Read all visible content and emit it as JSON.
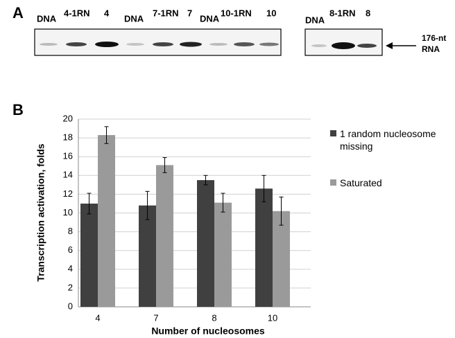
{
  "panel_a": {
    "label": "A",
    "gel_1_lanes": [
      "DNA",
      "4-1RN",
      "4",
      "DNA",
      "7-1RN",
      "7",
      "DNA",
      "10-1RN",
      "10"
    ],
    "gel_2_lanes": [
      "DNA",
      "8-1RN",
      "8"
    ],
    "band_label": [
      "176-nt",
      "RNA"
    ]
  },
  "chart_data": {
    "type": "bar",
    "panel_label": "B",
    "categories": [
      "4",
      "7",
      "8",
      "10"
    ],
    "series": [
      {
        "name": "1 random nucleosome missing",
        "color": "#404040",
        "values": [
          11.0,
          10.8,
          13.5,
          12.6
        ],
        "errors": [
          1.1,
          1.5,
          0.5,
          1.4
        ]
      },
      {
        "name": "Saturated",
        "color": "#9a9a9a",
        "values": [
          18.3,
          15.1,
          11.1,
          10.2
        ],
        "errors": [
          0.9,
          0.8,
          1.0,
          1.5
        ]
      }
    ],
    "x_label": "Number of  nucleosomes",
    "y_label": "Transcription activation, folds",
    "ylim": [
      0,
      20
    ],
    "yticks": [
      0,
      2,
      4,
      6,
      8,
      10,
      12,
      14,
      16,
      18,
      20
    ],
    "grid": true
  }
}
